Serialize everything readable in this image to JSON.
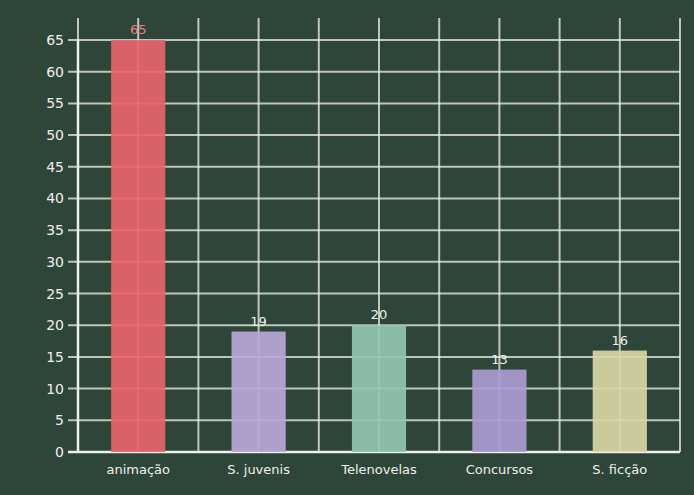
{
  "chart_data": {
    "type": "bar",
    "categories": [
      "animação",
      "S. juvenis",
      "Telenovelas",
      "Concursos",
      "S. ficção"
    ],
    "values": [
      65,
      19,
      20,
      13,
      16
    ],
    "colors": [
      "#e8646c",
      "#b8a8d8",
      "#92c4b2",
      "#ab9cd2",
      "#d9d6a6"
    ],
    "ylim": [
      0,
      65
    ],
    "yticks": [
      0,
      5,
      10,
      15,
      20,
      25,
      30,
      35,
      40,
      45,
      50,
      55,
      60,
      65
    ],
    "grid": true,
    "data_labels": true
  }
}
